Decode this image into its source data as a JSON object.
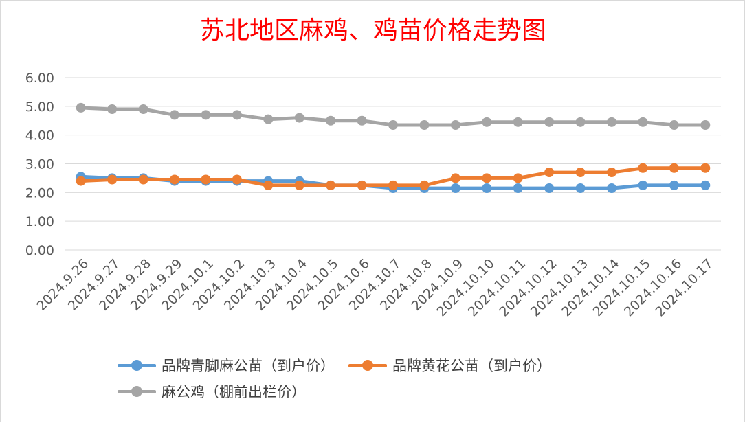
{
  "chart_data": {
    "type": "line",
    "title": "苏北地区麻鸡、鸡苗价格走势图",
    "categories": [
      "2024.9.26",
      "2024.9.27",
      "2024.9.28",
      "2024.9.29",
      "2024.10.1",
      "2024.10.2",
      "2024.10.3",
      "2024.10.4",
      "2024.10.5",
      "2024.10.6",
      "2024.10.7",
      "2024.10.8",
      "2024.10.9",
      "2024.10.10",
      "2024.10.11",
      "2024.10.12",
      "2024.10.13",
      "2024.10.14",
      "2024.10.15",
      "2024.10.16",
      "2024.10.17"
    ],
    "y_ticks": [
      "0.00",
      "1.00",
      "2.00",
      "3.00",
      "4.00",
      "5.00",
      "6.00"
    ],
    "ylim": [
      0,
      6
    ],
    "grid": true,
    "legend_position": "bottom",
    "series": [
      {
        "name": "品牌青脚麻公苗（到户价）",
        "color": "#5b9bd5",
        "values": [
          2.55,
          2.5,
          2.5,
          2.4,
          2.4,
          2.4,
          2.4,
          2.4,
          2.25,
          2.25,
          2.15,
          2.15,
          2.15,
          2.15,
          2.15,
          2.15,
          2.15,
          2.15,
          2.25,
          2.25,
          2.25
        ]
      },
      {
        "name": "品牌黄花公苗（到户价）",
        "color": "#ed7d31",
        "values": [
          2.4,
          2.45,
          2.45,
          2.45,
          2.45,
          2.45,
          2.25,
          2.25,
          2.25,
          2.25,
          2.25,
          2.25,
          2.5,
          2.5,
          2.5,
          2.7,
          2.7,
          2.7,
          2.85,
          2.85,
          2.85
        ]
      },
      {
        "name": "麻公鸡（棚前出栏价）",
        "color": "#a5a5a5",
        "values": [
          4.95,
          4.9,
          4.9,
          4.7,
          4.7,
          4.7,
          4.55,
          4.6,
          4.5,
          4.5,
          4.35,
          4.35,
          4.35,
          4.45,
          4.45,
          4.45,
          4.45,
          4.45,
          4.45,
          4.35,
          4.35
        ]
      }
    ]
  }
}
